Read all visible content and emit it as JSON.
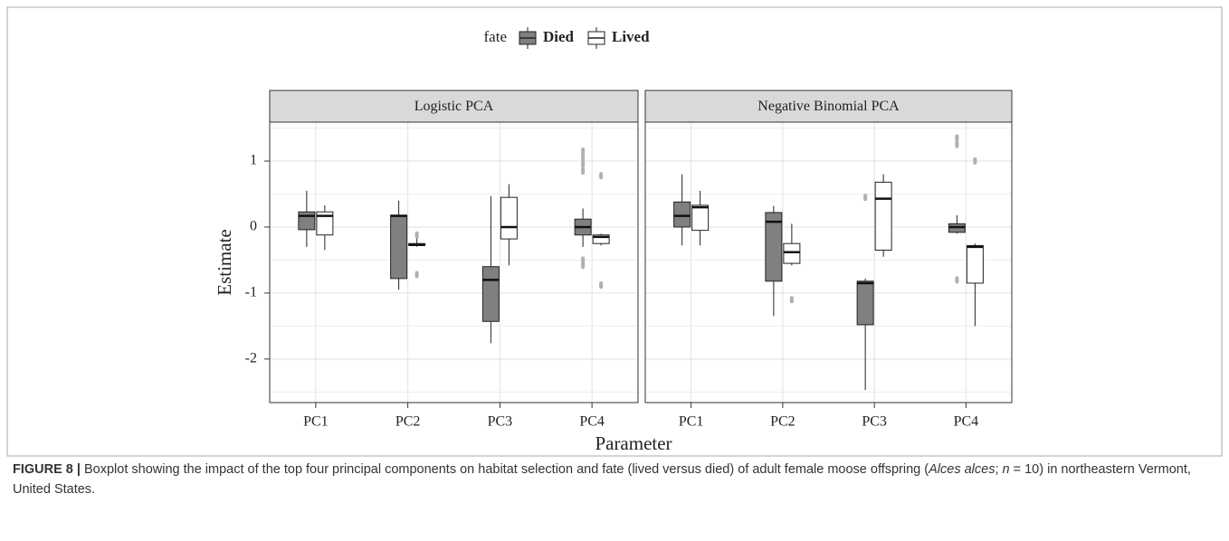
{
  "chart_data": {
    "type": "box",
    "legend_title": "fate",
    "xlabel": "Parameter",
    "ylabel": "Estimate",
    "ylim": [
      -2.66,
      1.59
    ],
    "yticks": [
      -2,
      -1,
      0,
      1
    ],
    "grid": true,
    "minor_grid": true,
    "series_styles": [
      {
        "name": "Died",
        "color": "#808080"
      },
      {
        "name": "Lived",
        "color": "#ffffff"
      }
    ],
    "facets": [
      {
        "title": "Logistic PCA",
        "categories": [
          "PC1",
          "PC2",
          "PC3",
          "PC4"
        ],
        "series": [
          {
            "low": [
              -0.3,
              -0.95,
              -1.76,
              -0.3
            ],
            "q1": [
              -0.04,
              -0.78,
              -1.43,
              -0.12
            ],
            "median": [
              0.17,
              0.17,
              -0.8,
              0.0
            ],
            "q3": [
              0.23,
              0.18,
              -0.6,
              0.12
            ],
            "high": [
              0.55,
              0.4,
              0.47,
              0.28
            ],
            "outliers": [
              [],
              [],
              [],
              [
                1.15,
                1.05,
                0.95,
                0.85,
                -0.5,
                -0.58
              ]
            ]
          },
          {
            "low": [
              -0.35,
              -0.3,
              -0.58,
              -0.28
            ],
            "q1": [
              -0.12,
              -0.28,
              -0.18,
              -0.25
            ],
            "median": [
              0.17,
              -0.27,
              0.0,
              -0.15
            ],
            "q3": [
              0.23,
              -0.25,
              0.45,
              -0.12
            ],
            "high": [
              0.33,
              -0.15,
              0.65,
              -0.1
            ],
            "outliers": [
              [],
              [
                -0.12,
                -0.72
              ],
              [],
              [
                0.78,
                -0.88
              ]
            ]
          }
        ]
      },
      {
        "title": "Negative Binomial PCA",
        "categories": [
          "PC1",
          "PC2",
          "PC3",
          "PC4"
        ],
        "series": [
          {
            "low": [
              -0.28,
              -1.35,
              -2.47,
              -0.1
            ],
            "q1": [
              0.0,
              -0.82,
              -1.48,
              -0.08
            ],
            "median": [
              0.17,
              0.08,
              -0.85,
              0.0
            ],
            "q3": [
              0.38,
              0.22,
              -0.82,
              0.05
            ],
            "high": [
              0.8,
              0.32,
              -0.78,
              0.18
            ],
            "outliers": [
              [],
              [],
              [
                0.45
              ],
              [
                1.35,
                1.25,
                -0.8
              ]
            ]
          },
          {
            "low": [
              -0.28,
              -0.58,
              -0.45,
              -1.5
            ],
            "q1": [
              -0.05,
              -0.55,
              -0.35,
              -0.85
            ],
            "median": [
              0.3,
              -0.38,
              0.43,
              -0.3
            ],
            "q3": [
              0.33,
              -0.25,
              0.68,
              -0.28
            ],
            "high": [
              0.55,
              0.05,
              0.8,
              -0.25
            ],
            "outliers": [
              [],
              [
                -1.1
              ],
              [],
              [
                1.0
              ]
            ]
          }
        ]
      }
    ]
  },
  "caption": {
    "label": "FIGURE 8 |",
    "parts": [
      " Boxplot showing the impact of the top four principal components on habitat selection and fate (lived versus died) of adult female moose offspring (",
      "Alces alces",
      "; ",
      "n",
      " = 10) in northeastern Vermont, United States."
    ]
  }
}
